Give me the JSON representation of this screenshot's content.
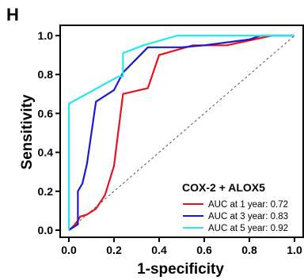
{
  "panel_label": "H",
  "colors": {
    "year1": "#e8121a",
    "year3": "#1a1acc",
    "year5": "#1ee8f0",
    "reference": "#555555",
    "axis": "#000000"
  },
  "chart_data": {
    "type": "line",
    "title": "",
    "xlabel": "1-specificity",
    "ylabel": "Sensitivity",
    "xlim": [
      0,
      1
    ],
    "ylim": [
      0,
      1
    ],
    "x_ticks": [
      "0.0",
      "0.2",
      "0.4",
      "0.6",
      "0.8",
      "1.0"
    ],
    "y_ticks": [
      "0.0",
      "0.2",
      "0.4",
      "0.6",
      "0.8",
      "1.0"
    ],
    "grid": false,
    "reference_line": "diagonal dashed",
    "legend": {
      "title": "COX-2 + ALOX5",
      "position": "bottom-right"
    },
    "series": [
      {
        "name": "AUC at 1 year: 0.72",
        "color": "#e8121a",
        "x": [
          0.0,
          0.02,
          0.04,
          0.05,
          0.08,
          0.12,
          0.16,
          0.2,
          0.24,
          0.35,
          0.4,
          0.55,
          0.6,
          0.7,
          0.9,
          1.0
        ],
        "y": [
          0.0,
          0.02,
          0.05,
          0.07,
          0.08,
          0.11,
          0.18,
          0.33,
          0.7,
          0.73,
          0.9,
          0.95,
          0.95,
          0.95,
          1.0,
          1.0
        ]
      },
      {
        "name": "AUC at 3 year: 0.83",
        "color": "#1a1acc",
        "x": [
          0.0,
          0.04,
          0.04,
          0.06,
          0.08,
          0.12,
          0.2,
          0.24,
          0.35,
          0.5,
          0.6,
          0.8,
          0.85,
          1.0
        ],
        "y": [
          0.0,
          0.03,
          0.2,
          0.24,
          0.34,
          0.66,
          0.72,
          0.81,
          0.94,
          0.94,
          0.95,
          0.98,
          1.0,
          1.0
        ]
      },
      {
        "name": "AUC at 5 year: 0.92",
        "color": "#1ee8f0",
        "x": [
          0.0,
          0.0,
          0.22,
          0.22,
          0.24,
          0.24,
          0.33,
          0.48,
          0.7,
          0.93,
          1.0
        ],
        "y": [
          0.0,
          0.65,
          0.79,
          0.79,
          0.79,
          0.91,
          0.95,
          1.0,
          1.0,
          1.0,
          1.0
        ]
      }
    ]
  }
}
